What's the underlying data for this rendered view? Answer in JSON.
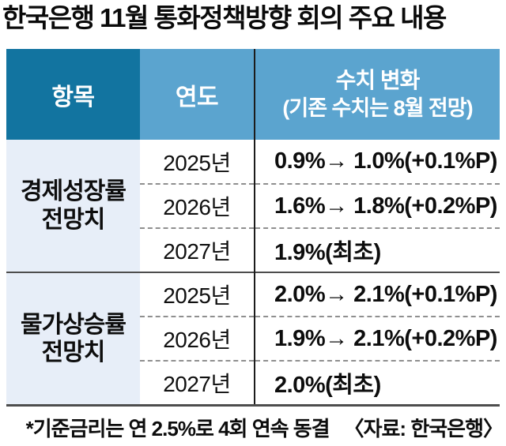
{
  "title": "한국은행 11월 통화정책방향 회의 주요 내용",
  "table": {
    "headers": {
      "item": "항목",
      "year": "연도",
      "change_line1": "수치 변화",
      "change_line2": "(기존 수치는 8월 전망)"
    },
    "groups": [
      {
        "label_line1": "경제성장률",
        "label_line2": "전망치",
        "rows": [
          {
            "year": "2025년",
            "value": "0.9%→ 1.0%(+0.1%P)"
          },
          {
            "year": "2026년",
            "value": "1.6%→ 1.8%(+0.2%P)"
          },
          {
            "year": "2027년",
            "value": "1.9%(최초)"
          }
        ]
      },
      {
        "label_line1": "물가상승률",
        "label_line2": "전망치",
        "rows": [
          {
            "year": "2025년",
            "value": "2.0%→ 2.1%(+0.1%P)"
          },
          {
            "year": "2026년",
            "value": "1.9%→ 2.1%(+0.2%P)"
          },
          {
            "year": "2027년",
            "value": "2.0%(최초)"
          }
        ]
      }
    ]
  },
  "footnote": "*기준금리는 연 2.5%로 4회 연속 동결",
  "source": "〈자료: 한국은행〉",
  "colors": {
    "header_dark_blue": "#1274a0",
    "header_light_blue": "#5ba4cf",
    "row_label_bg": "#e7eef8",
    "divider_dark": "#4d4d4d",
    "dashed_gray": "#8f8f8f",
    "text_black": "#0d0d0d"
  },
  "chart_data": {
    "type": "table",
    "title": "한국은행 11월 통화정책방향 회의 주요 내용",
    "columns": [
      "항목",
      "연도",
      "수치 변화 (기존 수치는 8월 전망)"
    ],
    "rows": [
      [
        "경제성장률 전망치",
        "2025년",
        "0.9%→ 1.0%(+0.1%P)"
      ],
      [
        "경제성장률 전망치",
        "2026년",
        "1.6%→ 1.8%(+0.2%P)"
      ],
      [
        "경제성장률 전망치",
        "2027년",
        "1.9%(최초)"
      ],
      [
        "물가상승률 전망치",
        "2025년",
        "2.0%→ 2.1%(+0.1%P)"
      ],
      [
        "물가상승률 전망치",
        "2026년",
        "1.9%→ 2.1%(+0.2%P)"
      ],
      [
        "물가상승률 전망치",
        "2027년",
        "2.0%(최초)"
      ]
    ],
    "footnote": "*기준금리는 연 2.5%로 4회 연속 동결",
    "source": "한국은행",
    "notes": {
      "growth_2025": {
        "previous_pct": 0.9,
        "new_pct": 1.0,
        "change_pct_point": 0.1
      },
      "growth_2026": {
        "previous_pct": 1.6,
        "new_pct": 1.8,
        "change_pct_point": 0.2
      },
      "growth_2027": {
        "new_pct": 1.9,
        "first_forecast": true
      },
      "inflation_2025": {
        "previous_pct": 2.0,
        "new_pct": 2.1,
        "change_pct_point": 0.1
      },
      "inflation_2026": {
        "previous_pct": 1.9,
        "new_pct": 2.1,
        "change_pct_point": 0.2
      },
      "inflation_2027": {
        "new_pct": 2.0,
        "first_forecast": true
      },
      "base_rate_pct": 2.5,
      "consecutive_holds": 4
    }
  }
}
